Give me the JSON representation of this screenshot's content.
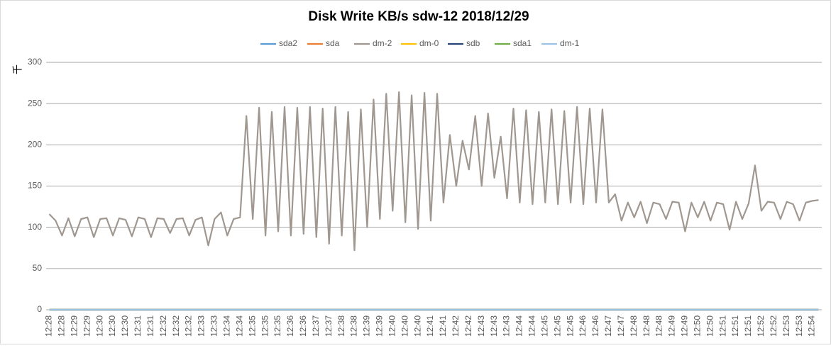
{
  "chart_data": {
    "type": "line",
    "title": "Disk Write KB/s sdw-12  2018/12/29",
    "y_unit_label": "千",
    "categories": [
      "12:28",
      null,
      "12:28",
      null,
      "12:29",
      null,
      "12:29",
      null,
      "12:30",
      null,
      "12:30",
      null,
      "12:30",
      null,
      "12:31",
      null,
      "12:31",
      null,
      "12:32",
      null,
      "12:32",
      null,
      "12:32",
      null,
      "12:33",
      null,
      "12:33",
      null,
      "12:34",
      null,
      "12:34",
      null,
      "12:35",
      null,
      "12:35",
      null,
      "12:35",
      null,
      "12:36",
      null,
      "12:36",
      null,
      "12:37",
      null,
      "12:37",
      null,
      "12:38",
      null,
      "12:38",
      null,
      "12:39",
      null,
      "12:39",
      null,
      "12:40",
      null,
      "12:40",
      null,
      "12:40",
      null,
      "12:41",
      null,
      "12:41",
      null,
      "12:42",
      null,
      "12:42",
      null,
      "12:43",
      null,
      "12:43",
      null,
      "12:43",
      null,
      "12:44",
      null,
      "12:44",
      null,
      "12:45",
      null,
      "12:45",
      null,
      "12:45",
      null,
      "12:46",
      null,
      "12:46",
      null,
      "12:47",
      null,
      "12:47",
      null,
      "12:48",
      null,
      "12:48",
      null,
      "12:48",
      null,
      "12:49",
      null,
      "12:49",
      null,
      "12:50",
      null,
      "12:50",
      null,
      "12:51",
      null,
      "12:51",
      null,
      "12:51",
      null,
      "12:52",
      null,
      "12:52",
      null,
      "12:53",
      null,
      "12:53",
      null,
      "12:54",
      null
    ],
    "series": [
      {
        "name": "sda2",
        "color": "#5b9bd5",
        "values": [
          0,
          0,
          0,
          0,
          0,
          0,
          0,
          0,
          0,
          0,
          0,
          0,
          0,
          0,
          0,
          0,
          0,
          0,
          0,
          0,
          0,
          0,
          0,
          0,
          0,
          0,
          0,
          0,
          0,
          0,
          0,
          0,
          0,
          0,
          0,
          0,
          0,
          0,
          0,
          0,
          0,
          0,
          0,
          0,
          0,
          0,
          0,
          0,
          0,
          0,
          0,
          0,
          0,
          0,
          0,
          0,
          0,
          0,
          0,
          0,
          0,
          0,
          0,
          0,
          0,
          0,
          0,
          0,
          0,
          0,
          0,
          0,
          0,
          0,
          0,
          0,
          0,
          0,
          0,
          0,
          0,
          0,
          0,
          0,
          0,
          0,
          0,
          0,
          0,
          0,
          0,
          0,
          0,
          0,
          0,
          0,
          0,
          0,
          0,
          0,
          0,
          0,
          0,
          0,
          0,
          0,
          0,
          0,
          0,
          0,
          0,
          0,
          0,
          0,
          0,
          0,
          0,
          0,
          0,
          0,
          0,
          0
        ]
      },
      {
        "name": "sda",
        "color": "#ed7d31",
        "values": [
          0,
          0,
          0,
          0,
          0,
          0,
          0,
          0,
          0,
          0,
          0,
          0,
          0,
          0,
          0,
          0,
          0,
          0,
          0,
          0,
          0,
          0,
          0,
          0,
          0,
          0,
          0,
          0,
          0,
          0,
          0,
          0,
          0,
          0,
          0,
          0,
          0,
          0,
          0,
          0,
          0,
          0,
          0,
          0,
          0,
          0,
          0,
          0,
          0,
          0,
          0,
          0,
          0,
          0,
          0,
          0,
          0,
          0,
          0,
          0,
          0,
          0,
          0,
          0,
          0,
          0,
          0,
          0,
          0,
          0,
          0,
          0,
          0,
          0,
          0,
          0,
          0,
          0,
          0,
          0,
          0,
          0,
          0,
          0,
          0,
          0,
          0,
          0,
          0,
          0,
          0,
          0,
          0,
          0,
          0,
          0,
          0,
          0,
          0,
          0,
          0,
          0,
          0,
          0,
          0,
          0,
          0,
          0,
          0,
          0,
          0,
          0,
          0,
          0,
          0,
          0,
          0,
          0,
          0,
          0,
          0,
          0
        ]
      },
      {
        "name": "dm-2",
        "color": "#a09890",
        "values": [
          116,
          108,
          90,
          111,
          89,
          110,
          112,
          88,
          110,
          111,
          90,
          111,
          109,
          89,
          112,
          110,
          88,
          111,
          110,
          93,
          110,
          111,
          90,
          109,
          112,
          78,
          110,
          118,
          90,
          110,
          112,
          235,
          110,
          245,
          90,
          240,
          95,
          246,
          90,
          245,
          92,
          246,
          88,
          244,
          80,
          246,
          90,
          240,
          72,
          243,
          100,
          255,
          110,
          262,
          120,
          264,
          106,
          260,
          98,
          263,
          108,
          262,
          130,
          212,
          150,
          205,
          170,
          235,
          150,
          238,
          160,
          210,
          135,
          244,
          130,
          242,
          128,
          240,
          130,
          243,
          128,
          241,
          130,
          246,
          128,
          244,
          130,
          243,
          130,
          140,
          108,
          130,
          112,
          131,
          105,
          130,
          128,
          110,
          131,
          130,
          95,
          130,
          112,
          131,
          108,
          130,
          128,
          97,
          131,
          110,
          129,
          175,
          120,
          131,
          130,
          110,
          131,
          128,
          108,
          130,
          132,
          133
        ]
      },
      {
        "name": "dm-0",
        "color": "#ffc000",
        "values": [
          0,
          0,
          0,
          0,
          0,
          0,
          0,
          0,
          0,
          0,
          0,
          0,
          0,
          0,
          0,
          0,
          0,
          0,
          0,
          0,
          0,
          0,
          0,
          0,
          0,
          0,
          0,
          0,
          0,
          0,
          0,
          0,
          0,
          0,
          0,
          0,
          0,
          0,
          0,
          0,
          0,
          0,
          0,
          0,
          0,
          0,
          0,
          0,
          0,
          0,
          0,
          0,
          0,
          0,
          0,
          0,
          0,
          0,
          0,
          0,
          0,
          0,
          0,
          0,
          0,
          0,
          0,
          0,
          0,
          0,
          0,
          0,
          0,
          0,
          0,
          0,
          0,
          0,
          0,
          0,
          0,
          0,
          0,
          0,
          0,
          0,
          0,
          0,
          0,
          0,
          0,
          0,
          0,
          0,
          0,
          0,
          0,
          0,
          0,
          0,
          0,
          0,
          0,
          0,
          0,
          0,
          0,
          0,
          0,
          0,
          0,
          0,
          0,
          0,
          0,
          0,
          0,
          0,
          0,
          0,
          0,
          0
        ]
      },
      {
        "name": "sdb",
        "color": "#264478",
        "values": [
          0,
          0,
          0,
          0,
          0,
          0,
          0,
          0,
          0,
          0,
          0,
          0,
          0,
          0,
          0,
          0,
          0,
          0,
          0,
          0,
          0,
          0,
          0,
          0,
          0,
          0,
          0,
          0,
          0,
          0,
          0,
          0,
          0,
          0,
          0,
          0,
          0,
          0,
          0,
          0,
          0,
          0,
          0,
          0,
          0,
          0,
          0,
          0,
          0,
          0,
          0,
          0,
          0,
          0,
          0,
          0,
          0,
          0,
          0,
          0,
          0,
          0,
          0,
          0,
          0,
          0,
          0,
          0,
          0,
          0,
          0,
          0,
          0,
          0,
          0,
          0,
          0,
          0,
          0,
          0,
          0,
          0,
          0,
          0,
          0,
          0,
          0,
          0,
          0,
          0,
          0,
          0,
          0,
          0,
          0,
          0,
          0,
          0,
          0,
          0,
          0,
          0,
          0,
          0,
          0,
          0,
          0,
          0,
          0,
          0,
          0,
          0,
          0,
          0,
          0,
          0,
          0,
          0,
          0,
          0,
          0,
          0
        ]
      },
      {
        "name": "sda1",
        "color": "#70ad47",
        "values": [
          0,
          0,
          0,
          0,
          0,
          0,
          0,
          0,
          0,
          0,
          0,
          0,
          0,
          0,
          0,
          0,
          0,
          0,
          0,
          0,
          0,
          0,
          0,
          0,
          0,
          0,
          0,
          0,
          0,
          0,
          0,
          0,
          0,
          0,
          0,
          0,
          0,
          0,
          0,
          0,
          0,
          0,
          0,
          0,
          0,
          0,
          0,
          0,
          0,
          0,
          0,
          0,
          0,
          0,
          0,
          0,
          0,
          0,
          0,
          0,
          0,
          0,
          0,
          0,
          0,
          0,
          0,
          0,
          0,
          0,
          0,
          0,
          0,
          0,
          0,
          0,
          0,
          0,
          0,
          0,
          0,
          0,
          0,
          0,
          0,
          0,
          0,
          0,
          0,
          0,
          0,
          0,
          0,
          0,
          0,
          0,
          0,
          0,
          0,
          0,
          0,
          0,
          0,
          0,
          0,
          0,
          0,
          0,
          0,
          0,
          0,
          0,
          0,
          0,
          0,
          0,
          0,
          0,
          0,
          0,
          0,
          0
        ]
      },
      {
        "name": "dm-1",
        "color": "#9dc3e6",
        "values": [
          0,
          0,
          0,
          0,
          0,
          0,
          0,
          0,
          0,
          0,
          0,
          0,
          0,
          0,
          0,
          0,
          0,
          0,
          0,
          0,
          0,
          0,
          0,
          0,
          0,
          0,
          0,
          0,
          0,
          0,
          0,
          0,
          0,
          0,
          0,
          0,
          0,
          0,
          0,
          0,
          0,
          0,
          0,
          0,
          0,
          0,
          0,
          0,
          0,
          0,
          0,
          0,
          0,
          0,
          0,
          0,
          0,
          0,
          0,
          0,
          0,
          0,
          0,
          0,
          0,
          0,
          0,
          0,
          0,
          0,
          0,
          0,
          0,
          0,
          0,
          0,
          0,
          0,
          0,
          0,
          0,
          0,
          0,
          0,
          0,
          0,
          0,
          0,
          0,
          0,
          0,
          0,
          0,
          0,
          0,
          0,
          0,
          0,
          0,
          0,
          0,
          0,
          0,
          0,
          0,
          0,
          0,
          0,
          0,
          0,
          0,
          0,
          0,
          0,
          0,
          0,
          0,
          0,
          0,
          0,
          0,
          0
        ]
      }
    ],
    "ylim": [
      0,
      300
    ],
    "yticks": [
      0,
      50,
      100,
      150,
      200,
      250,
      300
    ],
    "grid": true,
    "legend": "top"
  }
}
